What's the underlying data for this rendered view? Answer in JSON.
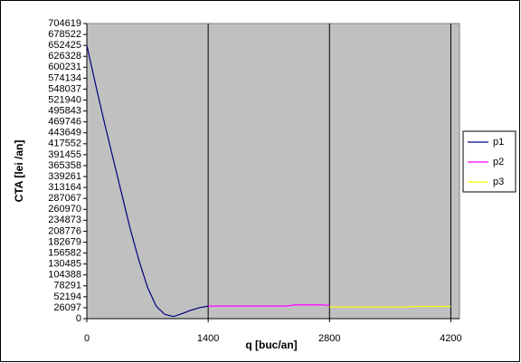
{
  "chart_data": {
    "type": "line",
    "xlabel": "q [buc/an]",
    "ylabel": "CTA  [lei /an]",
    "x": [
      0,
      100,
      200,
      300,
      400,
      500,
      600,
      700,
      800,
      900,
      1000,
      1100,
      1200,
      1300,
      1400,
      1500,
      1600,
      1700,
      1800,
      1900,
      2000,
      2100,
      2200,
      2300,
      2400,
      2500,
      2600,
      2700,
      2800,
      2900,
      3000,
      3100,
      3200,
      3300,
      3400,
      3500,
      3600,
      3700,
      3800,
      3900,
      4000,
      4100,
      4200
    ],
    "series": [
      {
        "name": "p1",
        "color": "#000080",
        "values": [
          652425,
          560000,
          470000,
          385000,
          300000,
          215000,
          140000,
          75000,
          30000,
          10000,
          5000,
          12000,
          20000,
          26000,
          30000,
          null,
          null,
          null,
          null,
          null,
          null,
          null,
          null,
          null,
          null,
          null,
          null,
          null,
          null,
          null,
          null,
          null,
          null,
          null,
          null,
          null,
          null,
          null,
          null,
          null,
          null,
          null,
          null
        ]
      },
      {
        "name": "p2",
        "color": "#ff00ff",
        "values": [
          null,
          null,
          null,
          null,
          null,
          null,
          null,
          null,
          null,
          null,
          null,
          null,
          null,
          null,
          30000,
          30000,
          30000,
          30000,
          30000,
          30000,
          30000,
          30000,
          30000,
          30000,
          33000,
          33000,
          33000,
          33000,
          32000,
          null,
          null,
          null,
          null,
          null,
          null,
          null,
          null,
          null,
          null,
          null,
          null,
          null,
          null
        ]
      },
      {
        "name": "p3",
        "color": "#ffff00",
        "values": [
          null,
          null,
          null,
          null,
          null,
          null,
          null,
          null,
          null,
          null,
          null,
          null,
          null,
          null,
          null,
          null,
          null,
          null,
          null,
          null,
          null,
          null,
          null,
          null,
          null,
          null,
          null,
          null,
          28000,
          28000,
          28000,
          28000,
          28000,
          28000,
          28000,
          28000,
          28000,
          28000,
          29000,
          29000,
          29000,
          29000,
          29000
        ]
      }
    ],
    "xlim": [
      0,
      4300
    ],
    "xticks": [
      0,
      1400,
      2800,
      4200
    ],
    "ylim": [
      0,
      704619
    ],
    "yticks": [
      0,
      26097,
      52194,
      78291,
      104388,
      130485,
      156582,
      182679,
      208776,
      234873,
      260970,
      287067,
      313164,
      339261,
      365358,
      391455,
      417552,
      443649,
      469746,
      495843,
      521940,
      548037,
      574134,
      600231,
      626328,
      652425,
      678522,
      704619
    ],
    "grid": "x",
    "plot_background": "#c0c0c0",
    "legend": "right"
  }
}
